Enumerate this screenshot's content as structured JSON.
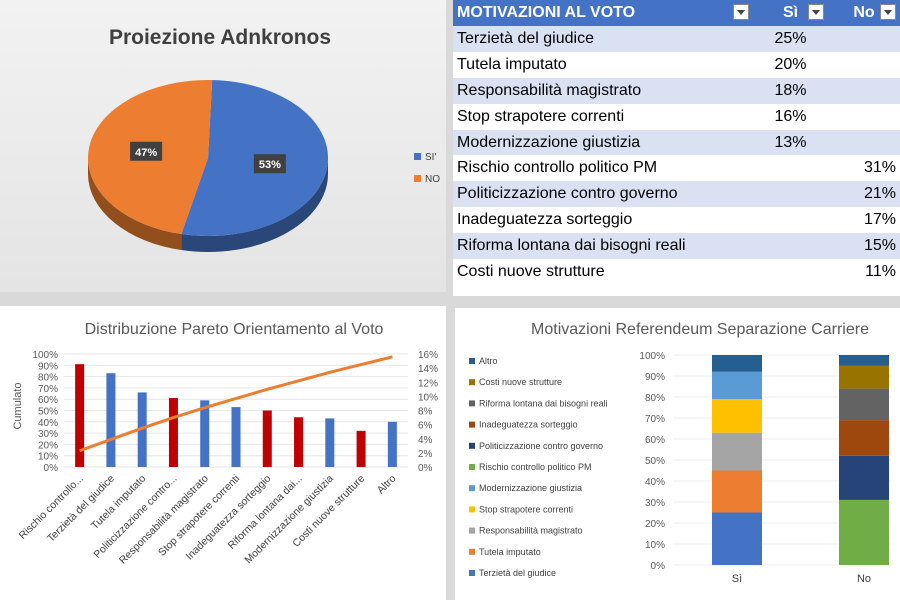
{
  "pie": {
    "title": "Proiezione Adnkronos",
    "colors": {
      "si": "#4472c4",
      "no": "#ed7d31"
    },
    "chart_data": {
      "type": "pie",
      "title": "Proiezione Adnkronos",
      "labels": [
        "SI'",
        "NO"
      ],
      "values": [
        53,
        47
      ],
      "data_labels": [
        "53%",
        "47%"
      ],
      "legend": "right"
    }
  },
  "table": {
    "headers": [
      "MOTIVAZIONI AL VOTO",
      "Sì",
      "No"
    ],
    "rows": [
      {
        "label": "Terzietà del giudice",
        "si": "25%",
        "no": ""
      },
      {
        "label": "Tutela imputato",
        "si": "20%",
        "no": ""
      },
      {
        "label": "Responsabilità magistrato",
        "si": "18%",
        "no": ""
      },
      {
        "label": "Stop strapotere correnti",
        "si": "16%",
        "no": ""
      },
      {
        "label": "Modernizzazione giustizia",
        "si": "13%",
        "no": ""
      },
      {
        "label": "Rischio controllo politico PM",
        "si": "",
        "no": "31%"
      },
      {
        "label": "Politicizzazione contro governo",
        "si": "",
        "no": "21%"
      },
      {
        "label": "Inadeguatezza sorteggio",
        "si": "",
        "no": "17%"
      },
      {
        "label": "Riforma lontana dai bisogni reali",
        "si": "",
        "no": "15%"
      },
      {
        "label": "Costi nuove strutture",
        "si": "",
        "no": "11%"
      }
    ]
  },
  "pareto": {
    "title": "Distribuzione Pareto Orientamento al Voto",
    "ylabel": "Cumulato",
    "line_color": "#ed7d31",
    "chart_data": {
      "type": "bar",
      "title": "Distribuzione Pareto Orientamento al Voto",
      "ylabel": "Cumulato",
      "categories": [
        "Rischio controllo...",
        "Terzietà del giudice",
        "Tutela imputato",
        "Politicizzazione contro...",
        "Responsabilità magistrato",
        "Stop strapotere correnti",
        "Inadeguatezza sorteggio",
        "Riforma lontana dai...",
        "Modernizzazione giustizia",
        "Costi nuove strutture",
        "Altro"
      ],
      "values": [
        91,
        83,
        66,
        61,
        59,
        53,
        50,
        44,
        43,
        32,
        40
      ],
      "bar_colors": [
        "#c00000",
        "#4472c4",
        "#4472c4",
        "#c00000",
        "#4472c4",
        "#4472c4",
        "#c00000",
        "#c00000",
        "#4472c4",
        "#c00000",
        "#4472c4"
      ],
      "cumulative_line": [
        2.3,
        3.9,
        5.5,
        7.0,
        8.4,
        9.7,
        11.0,
        12.2,
        13.4,
        14.5,
        15.6
      ],
      "ylim_left": [
        0,
        100
      ],
      "ylim_right": [
        0,
        16
      ],
      "left_ticks": [
        "0%",
        "10%",
        "20%",
        "30%",
        "40%",
        "50%",
        "60%",
        "70%",
        "80%",
        "90%",
        "100%"
      ],
      "right_ticks": [
        "0%",
        "2%",
        "4%",
        "6%",
        "8%",
        "10%",
        "12%",
        "14%",
        "16%"
      ]
    }
  },
  "stack": {
    "title": "Motivazioni Referendeum Separazione Carriere",
    "chart_data": {
      "type": "bar",
      "stacked": true,
      "title": "Motivazioni Referendeum Separazione Carriere",
      "categories": [
        "Sì",
        "No"
      ],
      "ylim": [
        0,
        100
      ],
      "y_ticks": [
        "0%",
        "10%",
        "20%",
        "30%",
        "40%",
        "50%",
        "60%",
        "70%",
        "80%",
        "90%",
        "100%"
      ],
      "series": [
        {
          "name": "Terzietà del giudice",
          "color": "#4472c4",
          "values": [
            25,
            0
          ]
        },
        {
          "name": "Tutela imputato",
          "color": "#ed7d31",
          "values": [
            20,
            0
          ]
        },
        {
          "name": "Responsabilità magistrato",
          "color": "#a5a5a5",
          "values": [
            18,
            0
          ]
        },
        {
          "name": "Stop strapotere correnti",
          "color": "#ffc000",
          "values": [
            16,
            0
          ]
        },
        {
          "name": "Modernizzazione giustizia",
          "color": "#5b9bd5",
          "values": [
            13,
            0
          ]
        },
        {
          "name": "Rischio controllo politico PM",
          "color": "#70ad47",
          "values": [
            0,
            31
          ]
        },
        {
          "name": "Politicizzazione contro governo",
          "color": "#264478",
          "values": [
            0,
            21
          ]
        },
        {
          "name": "Inadeguatezza sorteggio",
          "color": "#9e480e",
          "values": [
            0,
            17
          ]
        },
        {
          "name": "Riforma lontana dai bisogni reali",
          "color": "#636363",
          "values": [
            0,
            15
          ]
        },
        {
          "name": "Costi nuove strutture",
          "color": "#997300",
          "values": [
            0,
            11
          ]
        },
        {
          "name": "Altro",
          "color": "#255e91",
          "values": [
            8,
            5
          ]
        }
      ],
      "legend": "left"
    }
  }
}
